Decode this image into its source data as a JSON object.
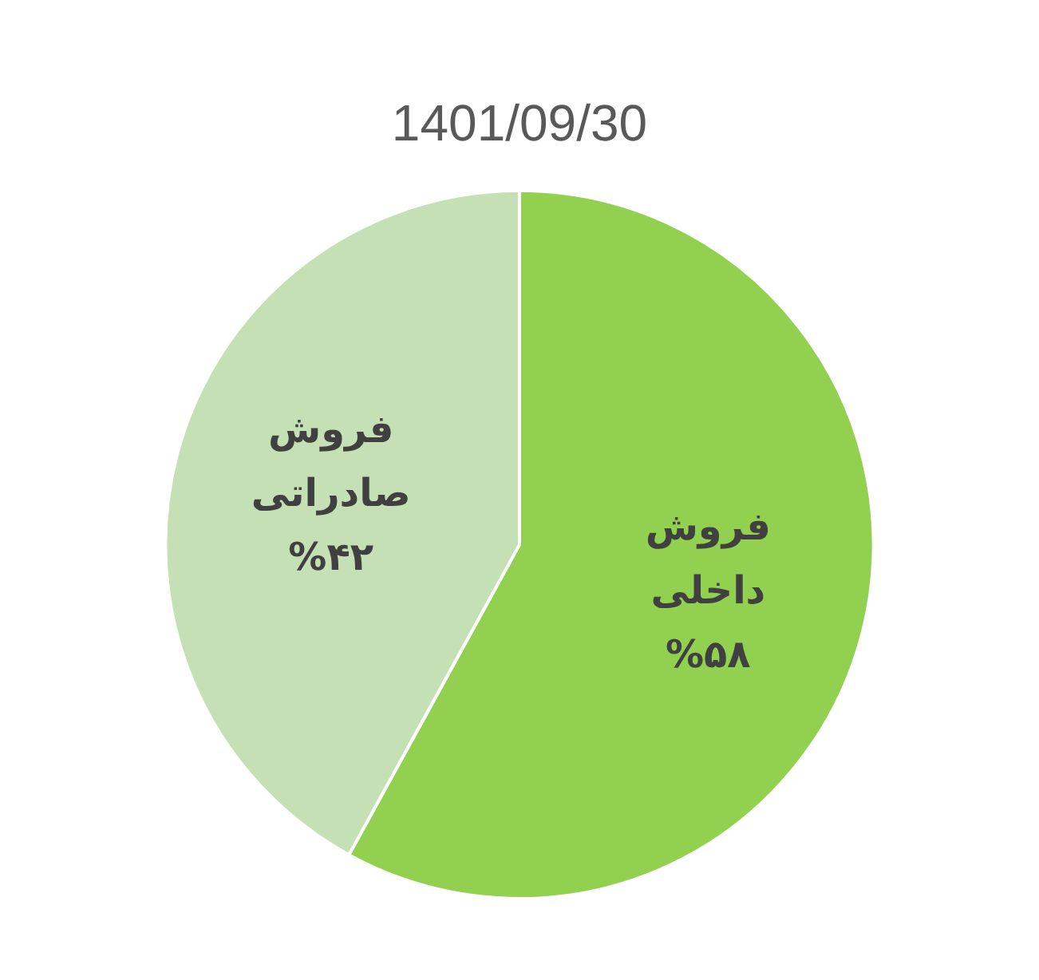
{
  "chart_data": {
    "type": "pie",
    "title": "1401/09/30",
    "categories": [
      "فروش داخلی",
      "فروش صادراتی"
    ],
    "values": [
      58,
      42
    ],
    "value_labels": [
      "%۵۸",
      "%۴۲"
    ],
    "colors": [
      "#92d050",
      "#c5e0b4"
    ],
    "legend": false
  }
}
